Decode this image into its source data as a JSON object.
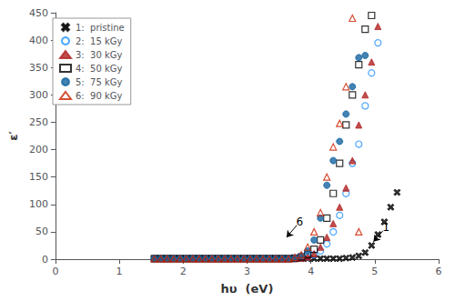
{
  "chart_data": {
    "type": "scatter",
    "xlabel": "hυ  (eV)",
    "ylabel": "ε′",
    "xlim": [
      0,
      6
    ],
    "ylim": [
      0,
      450
    ],
    "xticks": [
      0,
      1,
      2,
      3,
      4,
      5,
      6
    ],
    "yticks": [
      0,
      50,
      100,
      150,
      200,
      250,
      300,
      350,
      400,
      450
    ],
    "grid": false,
    "legend": "upper left",
    "series": [
      {
        "name": "1:  pristine",
        "color": "#000000",
        "marker": "x",
        "x": [
          1.55,
          1.65,
          1.75,
          1.85,
          1.95,
          2.05,
          2.15,
          2.25,
          2.35,
          2.45,
          2.55,
          2.65,
          2.75,
          2.85,
          2.95,
          3.05,
          3.15,
          3.25,
          3.35,
          3.45,
          3.55,
          3.65,
          3.75,
          3.85,
          3.95,
          4.05,
          4.15,
          4.25,
          4.35,
          4.45,
          4.55,
          4.65,
          4.75,
          4.85,
          4.95,
          5.05,
          5.15,
          5.25,
          5.35
        ],
        "values": [
          1,
          1,
          1,
          1,
          1,
          1,
          1,
          1,
          1,
          1,
          1,
          1,
          1,
          1,
          1,
          1,
          1,
          1,
          1,
          1,
          1,
          1,
          1,
          1,
          1,
          1,
          1,
          1,
          1,
          1,
          2,
          3,
          6,
          12,
          25,
          45,
          68,
          95,
          122
        ]
      },
      {
        "name": "2:  15 kGy",
        "color": "#1E90FF",
        "marker": "circle_open",
        "x": [
          1.55,
          1.65,
          1.75,
          1.85,
          1.95,
          2.05,
          2.15,
          2.25,
          2.35,
          2.45,
          2.55,
          2.65,
          2.75,
          2.85,
          2.95,
          3.05,
          3.15,
          3.25,
          3.35,
          3.45,
          3.55,
          3.65,
          3.75,
          3.85,
          3.95,
          4.05,
          4.15,
          4.25,
          4.35,
          4.45,
          4.55,
          4.65,
          4.75,
          4.85,
          4.95,
          5.05
        ],
        "values": [
          1,
          1,
          1,
          1,
          1,
          1,
          1,
          1,
          1,
          1,
          1,
          1,
          1,
          1,
          1,
          1,
          1,
          1,
          1,
          1,
          1,
          1,
          1,
          2,
          4,
          8,
          15,
          28,
          50,
          80,
          120,
          175,
          210,
          280,
          340,
          395
        ]
      },
      {
        "name": "3:  30 kGy",
        "color": "#B22222",
        "marker": "triangle_filled",
        "x": [
          1.55,
          1.65,
          1.75,
          1.85,
          1.95,
          2.05,
          2.15,
          2.25,
          2.35,
          2.45,
          2.55,
          2.65,
          2.75,
          2.85,
          2.95,
          3.05,
          3.15,
          3.25,
          3.35,
          3.45,
          3.55,
          3.65,
          3.75,
          3.85,
          3.95,
          4.05,
          4.15,
          4.25,
          4.35,
          4.45,
          4.55,
          4.65,
          4.75,
          4.85,
          4.95,
          5.05
        ],
        "values": [
          1,
          1,
          1,
          1,
          1,
          1,
          1,
          1,
          1,
          1,
          1,
          1,
          1,
          1,
          1,
          1,
          1,
          1,
          1,
          1,
          1,
          1,
          1,
          2,
          4,
          10,
          22,
          40,
          65,
          95,
          130,
          180,
          245,
          300,
          360,
          425
        ]
      },
      {
        "name": "4:  50 kGy",
        "color": "#000000",
        "marker": "square_open",
        "x": [
          1.55,
          1.65,
          1.75,
          1.85,
          1.95,
          2.05,
          2.15,
          2.25,
          2.35,
          2.45,
          2.55,
          2.65,
          2.75,
          2.85,
          2.95,
          3.05,
          3.15,
          3.25,
          3.35,
          3.45,
          3.55,
          3.65,
          3.75,
          3.85,
          3.95,
          4.05,
          4.15,
          4.25,
          4.35,
          4.45,
          4.55,
          4.65,
          4.75,
          4.85,
          4.95
        ],
        "values": [
          1,
          1,
          1,
          1,
          1,
          1,
          1,
          1,
          1,
          1,
          1,
          1,
          1,
          1,
          1,
          1,
          1,
          1,
          1,
          1,
          1,
          1,
          2,
          4,
          8,
          18,
          35,
          75,
          120,
          175,
          245,
          300,
          355,
          420,
          445
        ]
      },
      {
        "name": "5:  75 kGy",
        "color": "#1464A0",
        "marker": "circle_filled",
        "x": [
          1.55,
          1.65,
          1.75,
          1.85,
          1.95,
          2.05,
          2.15,
          2.25,
          2.35,
          2.45,
          2.55,
          2.65,
          2.75,
          2.85,
          2.95,
          3.05,
          3.15,
          3.25,
          3.35,
          3.45,
          3.55,
          3.65,
          3.75,
          3.85,
          3.95,
          4.05,
          4.15,
          4.25,
          4.35,
          4.45,
          4.55,
          4.65,
          4.75,
          4.85
        ],
        "values": [
          1,
          1,
          1,
          1,
          1,
          1,
          1,
          1,
          1,
          1,
          1,
          1,
          1,
          1,
          1,
          1,
          1,
          1,
          1,
          1,
          1,
          1,
          2,
          6,
          15,
          35,
          75,
          135,
          180,
          215,
          265,
          315,
          368,
          372
        ]
      },
      {
        "name": "6:  90 kGy",
        "color": "#CC2200",
        "marker": "triangle_open",
        "x": [
          1.55,
          1.65,
          1.75,
          1.85,
          1.95,
          2.05,
          2.15,
          2.25,
          2.35,
          2.45,
          2.55,
          2.65,
          2.75,
          2.85,
          2.95,
          3.05,
          3.15,
          3.25,
          3.35,
          3.45,
          3.55,
          3.65,
          3.75,
          3.85,
          3.95,
          4.05,
          4.15,
          4.25,
          4.35,
          4.45,
          4.55,
          4.65,
          4.75
        ],
        "values": [
          1,
          1,
          1,
          1,
          1,
          1,
          1,
          1,
          1,
          1,
          1,
          1,
          1,
          1,
          1,
          1,
          1,
          1,
          1,
          1,
          1,
          1,
          3,
          8,
          22,
          50,
          85,
          150,
          205,
          248,
          315,
          440,
          50
        ]
      }
    ],
    "annotations": [
      {
        "text": "6",
        "xy": [
          3.62,
          40
        ],
        "xytext": [
          3.78,
          62
        ]
      },
      {
        "text": "1",
        "xy": [
          4.98,
          32
        ],
        "xytext": [
          5.13,
          52
        ]
      }
    ]
  }
}
